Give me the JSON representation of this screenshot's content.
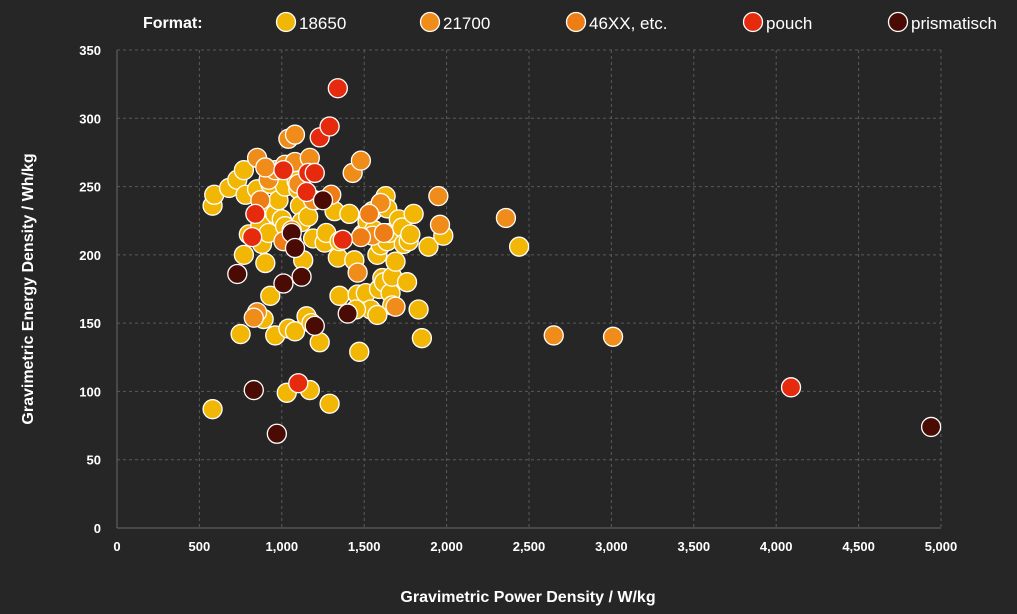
{
  "chart_data": {
    "type": "scatter",
    "legend_title": "Format:",
    "legend_position": "top",
    "xlabel": "Gravimetric Power Density / W/kg",
    "ylabel": "Gravimetric Energy Density / Wh/kg",
    "xlim": [
      0,
      5000
    ],
    "ylim": [
      0,
      350
    ],
    "x_ticks": [
      "0",
      "500",
      "1,000",
      "1,500",
      "2,000",
      "2,500",
      "3,000",
      "3,500",
      "4,000",
      "4,500",
      "5,000"
    ],
    "y_ticks": [
      "0",
      "50",
      "100",
      "150",
      "200",
      "250",
      "300",
      "350"
    ],
    "grid": true,
    "series": [
      {
        "name": "18650",
        "color": "#f2b705",
        "points": [
          [
            580,
            236
          ],
          [
            590,
            244
          ],
          [
            580,
            87
          ],
          [
            680,
            249
          ],
          [
            730,
            255
          ],
          [
            750,
            142
          ],
          [
            770,
            200
          ],
          [
            770,
            262
          ],
          [
            780,
            244
          ],
          [
            800,
            215
          ],
          [
            840,
            230
          ],
          [
            850,
            248
          ],
          [
            870,
            222
          ],
          [
            880,
            208
          ],
          [
            890,
            153
          ],
          [
            900,
            194
          ],
          [
            920,
            216
          ],
          [
            930,
            252
          ],
          [
            940,
            236
          ],
          [
            960,
            141
          ],
          [
            960,
            230
          ],
          [
            980,
            240
          ],
          [
            990,
            258
          ],
          [
            1000,
            226
          ],
          [
            1020,
            250
          ],
          [
            1030,
            99
          ],
          [
            1040,
            146
          ],
          [
            1050,
            214
          ],
          [
            1060,
            210
          ],
          [
            1080,
            144
          ],
          [
            1090,
            254
          ],
          [
            1100,
            248
          ],
          [
            1110,
            236
          ],
          [
            1120,
            224
          ],
          [
            1150,
            155
          ],
          [
            1160,
            228
          ],
          [
            1170,
            101
          ],
          [
            1190,
            212
          ],
          [
            1230,
            136
          ],
          [
            1260,
            209
          ],
          [
            1270,
            216
          ],
          [
            1290,
            91
          ],
          [
            1320,
            232
          ],
          [
            1340,
            198
          ],
          [
            1350,
            170
          ],
          [
            1350,
            210
          ],
          [
            1410,
            230
          ],
          [
            1440,
            196
          ],
          [
            1460,
            171
          ],
          [
            1470,
            129
          ],
          [
            1490,
            215
          ],
          [
            1510,
            172
          ],
          [
            1520,
            224
          ],
          [
            1540,
            160
          ],
          [
            1550,
            232
          ],
          [
            1560,
            218
          ],
          [
            1580,
            200
          ],
          [
            1590,
            175
          ],
          [
            1600,
            207
          ],
          [
            1610,
            183
          ],
          [
            1620,
            180
          ],
          [
            1630,
            243
          ],
          [
            1640,
            210
          ],
          [
            1640,
            234
          ],
          [
            1650,
            216
          ],
          [
            1660,
            172
          ],
          [
            1670,
            163
          ],
          [
            1670,
            184
          ],
          [
            1690,
            195
          ],
          [
            1710,
            226
          ],
          [
            1730,
            220
          ],
          [
            1740,
            208
          ],
          [
            1760,
            180
          ],
          [
            1770,
            210
          ],
          [
            1780,
            215
          ],
          [
            1800,
            230
          ],
          [
            1830,
            160
          ],
          [
            1850,
            139
          ],
          [
            1890,
            206
          ],
          [
            1980,
            214
          ],
          [
            2440,
            206
          ],
          [
            1130,
            196
          ],
          [
            1450,
            160
          ],
          [
            1580,
            156
          ],
          [
            930,
            170
          ],
          [
            1200,
            240
          ],
          [
            1020,
            221
          ],
          [
            1180,
            150
          ]
        ]
      },
      {
        "name": "21700",
        "color": "#f08c1a",
        "points": [
          [
            850,
            271
          ],
          [
            920,
            255
          ],
          [
            960,
            262
          ],
          [
            1020,
            266
          ],
          [
            1040,
            285
          ],
          [
            1080,
            288
          ],
          [
            1100,
            252
          ],
          [
            1080,
            268
          ],
          [
            1170,
            271
          ],
          [
            1190,
            240
          ],
          [
            1430,
            260
          ],
          [
            1480,
            269
          ],
          [
            1460,
            187
          ],
          [
            1600,
            238
          ],
          [
            1690,
            162
          ],
          [
            1950,
            243
          ],
          [
            1960,
            222
          ],
          [
            2360,
            227
          ],
          [
            2650,
            141
          ],
          [
            3010,
            140
          ],
          [
            850,
            158
          ],
          [
            830,
            154
          ],
          [
            900,
            264
          ],
          [
            1550,
            214
          ]
        ]
      },
      {
        "name": "46XX, etc.",
        "color": "#ef7d16",
        "points": [
          [
            870,
            240
          ],
          [
            1010,
            210
          ],
          [
            1060,
            218
          ],
          [
            1300,
            244
          ],
          [
            1480,
            213
          ],
          [
            1530,
            230
          ],
          [
            1620,
            216
          ]
        ]
      },
      {
        "name": "pouch",
        "color": "#e62a0d",
        "points": [
          [
            820,
            213
          ],
          [
            840,
            230
          ],
          [
            1010,
            262
          ],
          [
            1100,
            106
          ],
          [
            1150,
            246
          ],
          [
            1160,
            260
          ],
          [
            1200,
            260
          ],
          [
            1230,
            286
          ],
          [
            1290,
            294
          ],
          [
            1340,
            322
          ],
          [
            1370,
            211
          ],
          [
            4090,
            103
          ]
        ]
      },
      {
        "name": "prismatisch",
        "color": "#4a0b04",
        "points": [
          [
            730,
            186
          ],
          [
            830,
            101
          ],
          [
            970,
            69
          ],
          [
            1010,
            179
          ],
          [
            1060,
            216
          ],
          [
            1080,
            205
          ],
          [
            1120,
            184
          ],
          [
            1200,
            148
          ],
          [
            1250,
            240
          ],
          [
            1400,
            157
          ],
          [
            4940,
            74
          ]
        ]
      }
    ]
  }
}
